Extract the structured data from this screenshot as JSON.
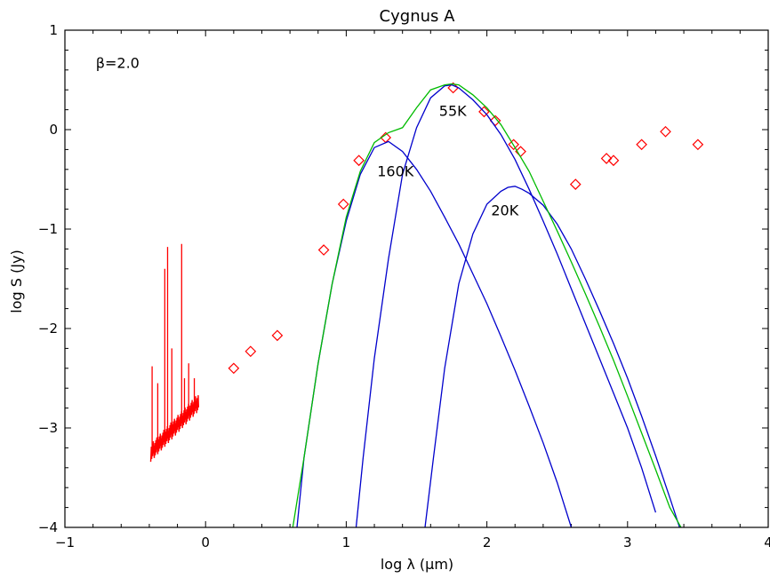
{
  "chart_data": {
    "type": "scatter",
    "title": "Cygnus A",
    "xlabel": "log λ (μm)",
    "ylabel": "log S (Jy)",
    "xlim": [
      -1,
      4
    ],
    "ylim": [
      -4,
      1
    ],
    "x_ticks": [
      -1,
      0,
      1,
      2,
      3,
      4
    ],
    "y_ticks": [
      -4,
      -3,
      -2,
      -1,
      0,
      1
    ],
    "x_tick_labels": [
      "−1",
      "0",
      "1",
      "2",
      "3",
      "4"
    ],
    "y_tick_labels": [
      "−4",
      "−3",
      "−2",
      "−1",
      "0",
      "1"
    ],
    "grid": false,
    "legend": "none",
    "annotations": [
      {
        "text": "β=2.0",
        "x": -0.78,
        "y": 0.62
      },
      {
        "text": "55K",
        "x": 1.66,
        "y": 0.14
      },
      {
        "text": "160K",
        "x": 1.22,
        "y": -0.47
      },
      {
        "text": "20K",
        "x": 2.03,
        "y": -0.86
      }
    ],
    "colors": {
      "observations": "#ff0000",
      "spectrum": "#ff0000",
      "components": "#0000cc",
      "total_fit": "#00bb00",
      "axes": "#000000"
    },
    "series": [
      {
        "kind": "points",
        "marker": "diamond",
        "color": "#ff0000",
        "x": [
          0.2,
          0.32,
          0.51,
          0.84,
          0.98,
          1.09,
          1.28,
          1.76,
          1.98,
          2.06,
          2.19,
          2.24,
          2.63,
          2.85,
          2.9,
          3.1,
          3.27,
          3.5
        ],
        "y": [
          -2.4,
          -2.23,
          -2.07,
          -1.21,
          -0.75,
          -0.31,
          -0.08,
          0.42,
          0.18,
          0.09,
          -0.15,
          -0.22,
          -0.55,
          -0.29,
          -0.31,
          -0.15,
          -0.02,
          -0.15
        ]
      },
      {
        "kind": "line",
        "color": "#0000cc",
        "x": [
          0.65,
          0.7,
          0.8,
          0.9,
          1.0,
          1.1,
          1.2,
          1.3,
          1.4,
          1.5,
          1.6,
          1.7,
          1.8,
          1.9,
          2.0,
          2.1,
          2.2,
          2.3,
          2.4,
          2.5,
          2.6
        ],
        "y": [
          -4.0,
          -3.3,
          -2.35,
          -1.55,
          -0.92,
          -0.45,
          -0.18,
          -0.12,
          -0.22,
          -0.4,
          -0.62,
          -0.88,
          -1.15,
          -1.45,
          -1.75,
          -2.08,
          -2.42,
          -2.78,
          -3.15,
          -3.55,
          -4.0
        ]
      },
      {
        "kind": "line",
        "color": "#0000cc",
        "x": [
          1.07,
          1.12,
          1.2,
          1.3,
          1.4,
          1.5,
          1.6,
          1.7,
          1.75,
          1.8,
          1.9,
          2.0,
          2.1,
          2.2,
          2.3,
          2.4,
          2.5,
          2.6,
          2.7,
          2.8,
          2.9,
          3.0,
          3.1,
          3.2
        ],
        "y": [
          -4.0,
          -3.3,
          -2.3,
          -1.3,
          -0.45,
          0.02,
          0.32,
          0.44,
          0.45,
          0.42,
          0.3,
          0.15,
          -0.05,
          -0.3,
          -0.6,
          -0.92,
          -1.25,
          -1.6,
          -1.95,
          -2.3,
          -2.65,
          -3.0,
          -3.4,
          -3.85
        ]
      },
      {
        "kind": "line",
        "color": "#0000cc",
        "x": [
          1.56,
          1.62,
          1.7,
          1.8,
          1.9,
          2.0,
          2.1,
          2.15,
          2.2,
          2.25,
          2.3,
          2.4,
          2.5,
          2.6,
          2.7,
          2.8,
          2.9,
          3.0,
          3.1,
          3.2,
          3.3,
          3.37
        ],
        "y": [
          -4.0,
          -3.3,
          -2.4,
          -1.55,
          -1.05,
          -0.75,
          -0.62,
          -0.58,
          -0.57,
          -0.6,
          -0.64,
          -0.76,
          -0.95,
          -1.2,
          -1.5,
          -1.82,
          -2.15,
          -2.5,
          -2.88,
          -3.28,
          -3.7,
          -4.0
        ]
      },
      {
        "kind": "line",
        "color": "#00bb00",
        "x": [
          0.62,
          0.7,
          0.8,
          0.9,
          1.0,
          1.1,
          1.2,
          1.3,
          1.4,
          1.5,
          1.6,
          1.7,
          1.75,
          1.8,
          1.9,
          2.0,
          2.1,
          2.2,
          2.3,
          2.4,
          2.5,
          2.6,
          2.7,
          2.8,
          2.9,
          3.0,
          3.1,
          3.2,
          3.3,
          3.38
        ],
        "y": [
          -4.0,
          -3.3,
          -2.35,
          -1.55,
          -0.88,
          -0.42,
          -0.13,
          -0.03,
          0.02,
          0.22,
          0.4,
          0.45,
          0.46,
          0.45,
          0.35,
          0.22,
          0.05,
          -0.18,
          -0.42,
          -0.72,
          -1.02,
          -1.33,
          -1.65,
          -1.98,
          -2.32,
          -2.68,
          -3.05,
          -3.42,
          -3.8,
          -4.0
        ]
      }
    ]
  }
}
